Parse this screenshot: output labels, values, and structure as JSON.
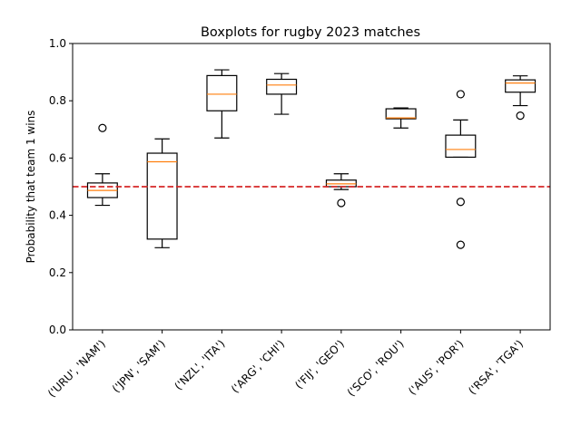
{
  "chart_data": {
    "type": "boxplot",
    "title": "Boxplots for rugby 2023 matches",
    "xlabel": "",
    "ylabel": "Probability that team 1 wins",
    "ylim": [
      0.0,
      1.0
    ],
    "yticks": [
      "0.0",
      "0.2",
      "0.4",
      "0.6",
      "0.8",
      "1.0"
    ],
    "grid": false,
    "reference_line": {
      "y": 0.5,
      "style": "dashed",
      "color": "#d62728"
    },
    "colors": {
      "box": "#000000",
      "median": "#ff7f0e",
      "reference": "#d62728"
    },
    "categories": [
      "('URU', 'NAM')",
      "('JPN', 'SAM')",
      "('NZL', 'ITA')",
      "('ARG', 'CHI')",
      "('FIJ', 'GEO')",
      "('SCO', 'ROU')",
      "('AUS', 'POR')",
      "('RSA', 'TGA')"
    ],
    "boxes": [
      {
        "whislo": 0.435,
        "q1": 0.462,
        "med": 0.487,
        "q3": 0.513,
        "whishi": 0.545,
        "fliers": [
          0.705
        ]
      },
      {
        "whislo": 0.287,
        "q1": 0.317,
        "med": 0.587,
        "q3": 0.617,
        "whishi": 0.667,
        "fliers": []
      },
      {
        "whislo": 0.67,
        "q1": 0.765,
        "med": 0.823,
        "q3": 0.888,
        "whishi": 0.908,
        "fliers": []
      },
      {
        "whislo": 0.753,
        "q1": 0.823,
        "med": 0.855,
        "q3": 0.875,
        "whishi": 0.895,
        "fliers": []
      },
      {
        "whislo": 0.49,
        "q1": 0.5,
        "med": 0.51,
        "q3": 0.523,
        "whishi": 0.545,
        "fliers": [
          0.443
        ]
      },
      {
        "whislo": 0.705,
        "q1": 0.737,
        "med": 0.74,
        "q3": 0.772,
        "whishi": 0.775,
        "fliers": []
      },
      {
        "whislo": 0.603,
        "q1": 0.603,
        "med": 0.63,
        "q3": 0.68,
        "whishi": 0.733,
        "fliers": [
          0.823,
          0.447,
          0.297
        ]
      },
      {
        "whislo": 0.783,
        "q1": 0.83,
        "med": 0.862,
        "q3": 0.873,
        "whishi": 0.887,
        "fliers": [
          0.748
        ]
      }
    ]
  }
}
